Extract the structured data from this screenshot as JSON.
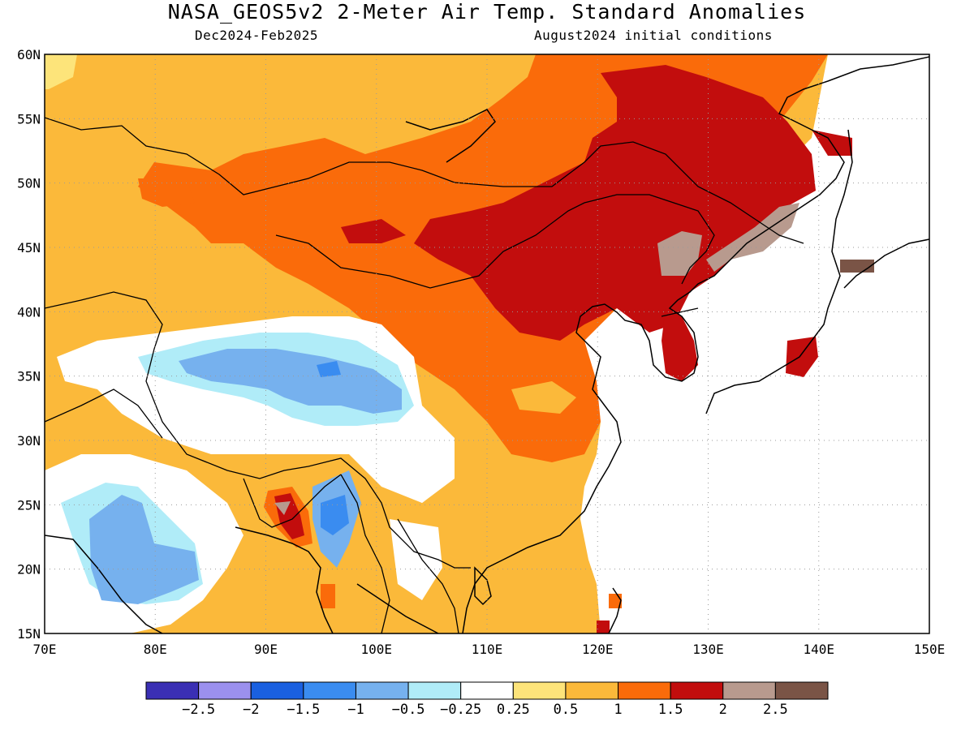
{
  "title": "NASA_GEOS5v2 2-Meter Air Temp. Standard Anomalies",
  "subtitle_left": "Dec2024-Feb2025",
  "subtitle_right": "August2024 initial conditions",
  "lat_labels": [
    "60N",
    "55N",
    "50N",
    "45N",
    "40N",
    "35N",
    "30N",
    "25N",
    "20N",
    "15N"
  ],
  "lon_labels": [
    "70E",
    "80E",
    "90E",
    "100E",
    "110E",
    "120E",
    "130E",
    "140E",
    "150E"
  ],
  "colorbar": {
    "colors": [
      "#3a2fb4",
      "#9b90ee",
      "#1a60e0",
      "#3a8cf0",
      "#76b1ee",
      "#b0ecf8",
      "#ffffff",
      "#fde47a",
      "#fbb93a",
      "#fa6b0a",
      "#c20d0d",
      "#b89a8e",
      "#7a5446"
    ],
    "labels": [
      "−2.5",
      "−2",
      "−1.5",
      "−1",
      "−0.5",
      "−0.25",
      "0.25",
      "0.5",
      "1",
      "1.5",
      "2",
      "2.5"
    ]
  }
}
